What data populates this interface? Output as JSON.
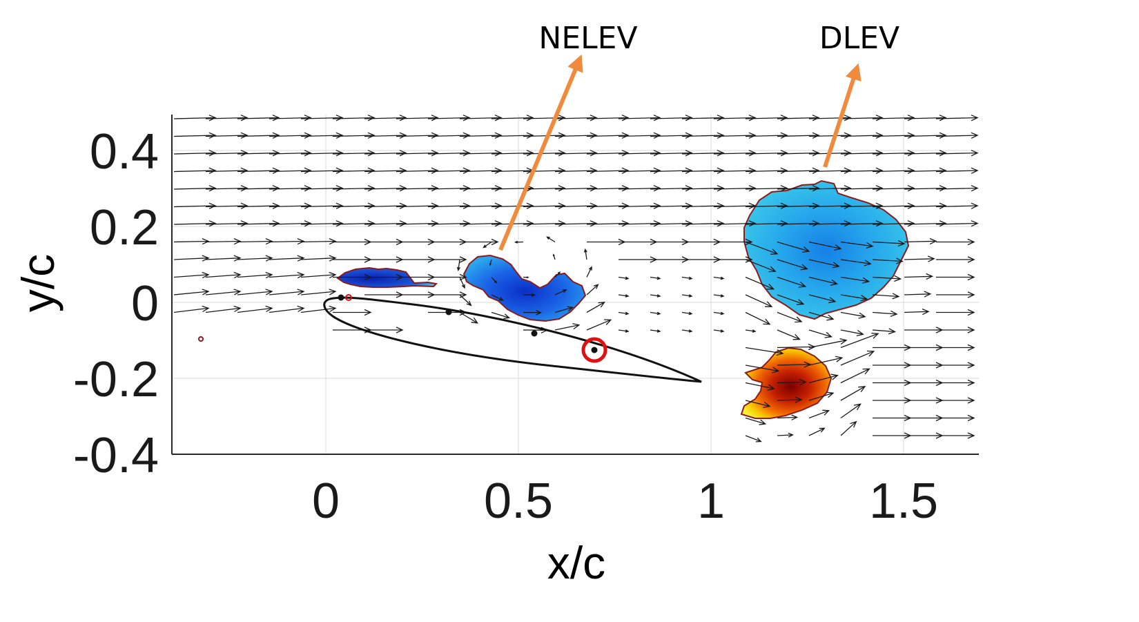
{
  "chart_data": {
    "type": "scatter",
    "title": "",
    "xlabel": "x/c",
    "ylabel": "y/c",
    "xlim": [
      -0.4,
      1.7
    ],
    "ylim": [
      -0.4,
      0.5
    ],
    "xticks": [
      0,
      0.5,
      1,
      1.5
    ],
    "xtick_labels": [
      "0",
      "0.5",
      "1",
      "1.5"
    ],
    "yticks": [
      -0.4,
      -0.2,
      0,
      0.2,
      0.4
    ],
    "ytick_labels": [
      "-0.4",
      "-0.2",
      "0",
      "0.2",
      "0.4"
    ],
    "grid": true,
    "airfoil": {
      "leading_edge": [
        0.0,
        0.0
      ],
      "trailing_edge": [
        0.98,
        -0.21
      ],
      "surface_markers": [
        {
          "x": 0.04,
          "y": 0.015
        },
        {
          "x": 0.32,
          "y": -0.025
        },
        {
          "x": 0.545,
          "y": -0.08
        },
        {
          "x": 0.7,
          "y": -0.125
        }
      ],
      "highlighted_marker": {
        "x": 0.7,
        "y": -0.125,
        "color": "#e01010"
      },
      "small_red_marker": {
        "x": 0.06,
        "y": 0.015
      }
    },
    "vortices": [
      {
        "name": "NELEV",
        "sign": "clockwise",
        "color": "#1a6fe0",
        "center": [
          0.5,
          0.04
        ]
      },
      {
        "name": "DLEV",
        "sign": "clockwise",
        "color": "#2fb2ea",
        "center": [
          1.25,
          0.17
        ]
      },
      {
        "name": "counter-rotating vortex",
        "sign": "counter-clockwise",
        "color": "#c41f00",
        "center": [
          1.22,
          -0.23
        ]
      }
    ],
    "annotations": [
      {
        "text": "NELEV",
        "arrow_from": [
          0.45,
          0.14
        ],
        "arrow_to": [
          0.67,
          0.65
        ],
        "color": "#f08a3c"
      },
      {
        "text": "DLEV",
        "arrow_from": [
          1.3,
          0.36
        ],
        "arrow_to": [
          1.39,
          0.65
        ],
        "color": "#f08a3c"
      }
    ]
  }
}
